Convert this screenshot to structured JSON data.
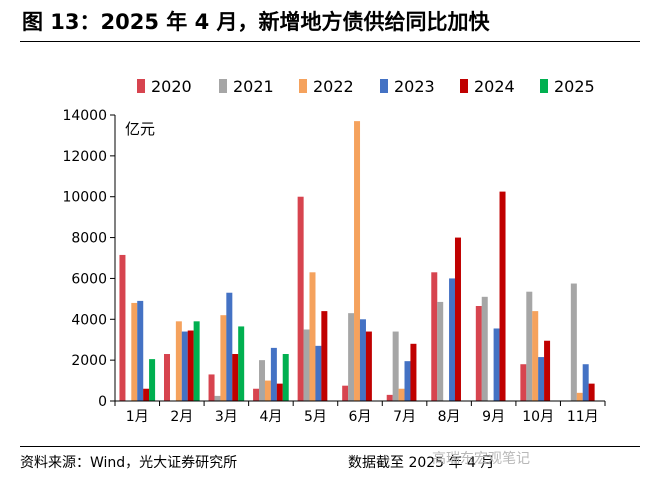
{
  "title": "图 13：2025 年 4 月，新增地方债供给同比加快",
  "footer": {
    "source": "资料来源：Wind，光大证券研究所",
    "cutoff": "数据截至 2025 年 4 月"
  },
  "watermark": "高瑞东宏观笔记",
  "colors": {
    "2020": "#d7444f",
    "2021": "#a6a6a6",
    "2022": "#f5a25d",
    "2023": "#4472c4",
    "2024": "#c00000",
    "2025": "#00b050"
  },
  "chart_data": {
    "type": "bar",
    "unit_label": "亿元",
    "categories": [
      "1月",
      "2月",
      "3月",
      "4月",
      "5月",
      "6月",
      "7月",
      "8月",
      "9月",
      "10月",
      "11月"
    ],
    "series": [
      {
        "name": "2020",
        "values": [
          7150,
          2300,
          1300,
          600,
          10000,
          750,
          300,
          6300,
          4650,
          1800,
          0
        ]
      },
      {
        "name": "2021",
        "values": [
          0,
          0,
          250,
          2000,
          3500,
          4300,
          3400,
          4850,
          5100,
          5350,
          5750
        ]
      },
      {
        "name": "2022",
        "values": [
          4800,
          3900,
          4200,
          1000,
          6300,
          13700,
          600,
          0,
          0,
          4400,
          400
        ]
      },
      {
        "name": "2023",
        "values": [
          4900,
          3400,
          5300,
          2600,
          2700,
          4000,
          1950,
          6000,
          3550,
          2150,
          1800
        ]
      },
      {
        "name": "2024",
        "values": [
          600,
          3450,
          2300,
          850,
          4400,
          3400,
          2800,
          8000,
          10250,
          2950,
          850
        ]
      },
      {
        "name": "2025",
        "values": [
          2050,
          3900,
          3650,
          2300,
          null,
          null,
          null,
          null,
          null,
          null,
          null
        ]
      }
    ],
    "ylim": [
      0,
      14000
    ],
    "yticks": [
      0,
      2000,
      4000,
      6000,
      8000,
      10000,
      12000,
      14000
    ],
    "legend_position": "top",
    "grid": false
  }
}
